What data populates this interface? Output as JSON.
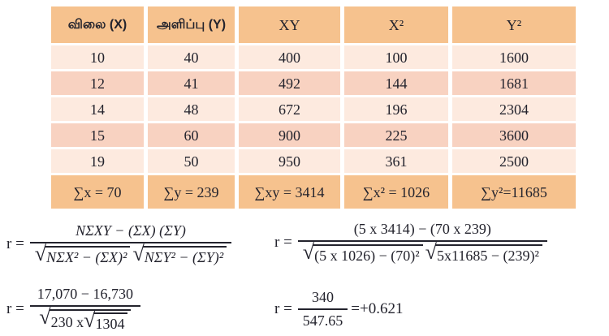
{
  "colors": {
    "header_bg": "#f6c28e",
    "row_light": "#fdeadf",
    "row_dark": "#f8d2c1",
    "text": "#23232d"
  },
  "table": {
    "headers": [
      "விலை (X)",
      "அளிப்பு (Y)",
      "XY",
      "X²",
      "Y²"
    ],
    "rows": [
      [
        "10",
        "40",
        "400",
        "100",
        "1600"
      ],
      [
        "12",
        "41",
        "492",
        "144",
        "1681"
      ],
      [
        "14",
        "48",
        "672",
        "196",
        "2304"
      ],
      [
        "15",
        "60",
        "900",
        "225",
        "3600"
      ],
      [
        "19",
        "50",
        "950",
        "361",
        "2500"
      ]
    ],
    "totals": [
      "∑x = 70",
      "∑y = 239",
      "∑xy = 3414",
      "∑x² = 1026",
      "∑y²=11685"
    ]
  },
  "formulas": {
    "definition": {
      "lhs": "r =",
      "numerator": "NΣXY − (ΣX) (ΣY)",
      "sqrt1": "NΣX² − (ΣX)²",
      "sqrt2": "NΣY² − (ΣY)²"
    },
    "substitution": {
      "lhs": "r =",
      "numerator": "(5 x 3414) − (70 x 239)",
      "sqrt1": "(5 x 1026) − (70)²",
      "sqrt2": "5x11685 − (239)²"
    },
    "simplified": {
      "lhs": "r =",
      "numerator": "17,070 − 16,730",
      "sqrt_outer": "230 x",
      "sqrt_inner": "1304"
    },
    "result": {
      "lhs": "r =",
      "numerator": "340",
      "denominator": "547.65",
      "value": "=+0.621"
    }
  }
}
